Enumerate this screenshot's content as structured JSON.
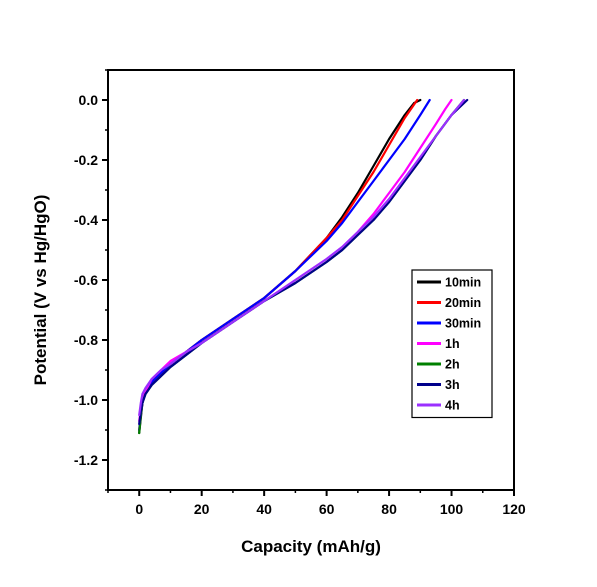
{
  "chart_data": {
    "type": "line",
    "xlabel": "Capacity (mAh/g)",
    "ylabel": "Potential (V vs Hg/HgO)",
    "xlim": [
      -10,
      120
    ],
    "ylim": [
      -1.3,
      0.1
    ],
    "xticks": [
      0,
      20,
      40,
      60,
      80,
      100,
      120
    ],
    "yticks": [
      0.0,
      -0.2,
      -0.4,
      -0.6,
      -0.8,
      -1.0,
      -1.2
    ],
    "xtick_labels": [
      "0",
      "20",
      "40",
      "60",
      "80",
      "100",
      "120"
    ],
    "ytick_labels": [
      "0.0",
      "-0.2",
      "-0.4",
      "-0.6",
      "-0.8",
      "-1.0",
      "-1.2"
    ],
    "grid": false,
    "legend_position": "center-right",
    "series": [
      {
        "name": "10min",
        "color": "#000000",
        "x": [
          0,
          0.5,
          1,
          2,
          4,
          7,
          10,
          15,
          20,
          30,
          40,
          50,
          60,
          65,
          70,
          75,
          80,
          85,
          88,
          90
        ],
        "y": [
          -1.11,
          -1.06,
          -1.01,
          -0.97,
          -0.94,
          -0.91,
          -0.88,
          -0.84,
          -0.8,
          -0.73,
          -0.66,
          -0.57,
          -0.46,
          -0.39,
          -0.31,
          -0.22,
          -0.13,
          -0.05,
          -0.01,
          0.0
        ]
      },
      {
        "name": "20min",
        "color": "#ff0000",
        "x": [
          0,
          0.5,
          1,
          2,
          4,
          7,
          10,
          15,
          20,
          30,
          40,
          50,
          60,
          65,
          70,
          75,
          80,
          85,
          89
        ],
        "y": [
          -1.1,
          -1.05,
          -1.01,
          -0.97,
          -0.94,
          -0.91,
          -0.88,
          -0.84,
          -0.8,
          -0.73,
          -0.66,
          -0.57,
          -0.46,
          -0.4,
          -0.32,
          -0.24,
          -0.15,
          -0.06,
          0.0
        ]
      },
      {
        "name": "30min",
        "color": "#0000ff",
        "x": [
          0,
          0.5,
          1,
          2,
          4,
          7,
          10,
          15,
          20,
          30,
          40,
          50,
          60,
          65,
          70,
          75,
          80,
          85,
          90,
          93
        ],
        "y": [
          -1.1,
          -1.05,
          -1.01,
          -0.97,
          -0.94,
          -0.91,
          -0.88,
          -0.84,
          -0.8,
          -0.73,
          -0.66,
          -0.57,
          -0.47,
          -0.41,
          -0.34,
          -0.27,
          -0.2,
          -0.13,
          -0.05,
          0.0
        ]
      },
      {
        "name": "1h",
        "color": "#ff00ff",
        "x": [
          0,
          0.5,
          1,
          2,
          4,
          7,
          10,
          15,
          20,
          30,
          40,
          50,
          60,
          65,
          70,
          75,
          80,
          85,
          90,
          95,
          98,
          100
        ],
        "y": [
          -1.07,
          -1.03,
          -1.0,
          -0.97,
          -0.93,
          -0.9,
          -0.87,
          -0.84,
          -0.81,
          -0.74,
          -0.67,
          -0.6,
          -0.53,
          -0.49,
          -0.44,
          -0.38,
          -0.31,
          -0.24,
          -0.16,
          -0.08,
          -0.03,
          0.0
        ]
      },
      {
        "name": "2h",
        "color": "#008000",
        "x": [
          0,
          0.5,
          1,
          2,
          4,
          7,
          10,
          15,
          20,
          30,
          40,
          50,
          60,
          65,
          70,
          75,
          80,
          85,
          90,
          95,
          100,
          104
        ],
        "y": [
          -1.11,
          -1.05,
          -1.01,
          -0.98,
          -0.95,
          -0.92,
          -0.89,
          -0.85,
          -0.81,
          -0.74,
          -0.67,
          -0.61,
          -0.54,
          -0.5,
          -0.45,
          -0.4,
          -0.34,
          -0.27,
          -0.2,
          -0.12,
          -0.05,
          0.0
        ]
      },
      {
        "name": "3h",
        "color": "#00008b",
        "x": [
          0,
          0.5,
          1,
          2,
          4,
          7,
          10,
          15,
          20,
          30,
          40,
          50,
          60,
          65,
          70,
          75,
          80,
          85,
          90,
          95,
          100,
          105
        ],
        "y": [
          -1.08,
          -1.04,
          -1.01,
          -0.98,
          -0.95,
          -0.92,
          -0.89,
          -0.85,
          -0.81,
          -0.74,
          -0.67,
          -0.61,
          -0.54,
          -0.5,
          -0.45,
          -0.4,
          -0.34,
          -0.27,
          -0.2,
          -0.12,
          -0.05,
          0.0
        ]
      },
      {
        "name": "4h",
        "color": "#9b30ff",
        "x": [
          0,
          0.5,
          1,
          2,
          4,
          7,
          10,
          15,
          20,
          30,
          40,
          50,
          60,
          65,
          70,
          75,
          80,
          85,
          90,
          95,
          100,
          104
        ],
        "y": [
          -1.05,
          -1.01,
          -0.98,
          -0.96,
          -0.93,
          -0.9,
          -0.88,
          -0.84,
          -0.81,
          -0.74,
          -0.67,
          -0.6,
          -0.53,
          -0.49,
          -0.44,
          -0.39,
          -0.33,
          -0.26,
          -0.19,
          -0.12,
          -0.05,
          0.0
        ]
      }
    ]
  }
}
